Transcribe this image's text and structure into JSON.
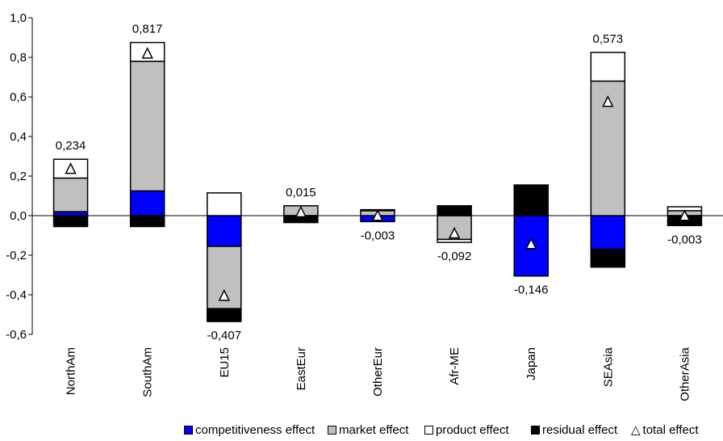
{
  "chart_data": {
    "type": "bar",
    "stacked": true,
    "categories": [
      "NorthAm",
      "SouthAm",
      "EU15",
      "EastEur",
      "OtherEur",
      "Afr-ME",
      "Japan",
      "SEAsia",
      "OtherAsia"
    ],
    "series": [
      {
        "name": "competitiveness effect",
        "color": "#0000ff",
        "values": [
          0.02,
          0.125,
          -0.155,
          0.0,
          -0.03,
          0.0,
          -0.305,
          -0.17,
          0.0
        ]
      },
      {
        "name": "market effect",
        "color": "#c0c0c0",
        "values": [
          0.17,
          0.655,
          -0.315,
          0.05,
          0.025,
          -0.12,
          0.0,
          0.68,
          0.025
        ]
      },
      {
        "name": "product effect",
        "color": "#ffffff",
        "values": [
          0.095,
          0.095,
          0.115,
          0.0,
          0.0,
          -0.015,
          0.0,
          0.145,
          0.02
        ]
      },
      {
        "name": "residual effect",
        "color": "#000000",
        "values": [
          -0.055,
          -0.055,
          -0.065,
          -0.035,
          0.005,
          0.05,
          0.155,
          -0.09,
          -0.05
        ]
      }
    ],
    "total_effect": {
      "name": "total effect",
      "values": [
        0.234,
        0.817,
        -0.407,
        0.015,
        -0.003,
        -0.092,
        -0.146,
        0.573,
        -0.003
      ],
      "labels": [
        "0,234",
        "0,817",
        "-0,407",
        "0,015",
        "-0,003",
        "-0,092",
        "-0,146",
        "0,573",
        "-0,003"
      ]
    },
    "ylim": [
      -0.6,
      1.0
    ],
    "yticks": [
      -0.6,
      -0.4,
      -0.2,
      0.0,
      0.2,
      0.4,
      0.6,
      0.8,
      1.0
    ],
    "ytick_labels": [
      "-0,6",
      "-0,4",
      "-0,2",
      "0,0",
      "0,2",
      "0,4",
      "0,6",
      "0,8",
      "1,0"
    ],
    "grid": false,
    "legend_position": "bottom"
  },
  "legend": {
    "items": [
      {
        "label": "competitiveness effect",
        "color": "#0000ff"
      },
      {
        "label": "market effect",
        "color": "#c0c0c0"
      },
      {
        "label": "product effect",
        "color": "#ffffff"
      },
      {
        "label": "residual effect",
        "color": "#000000"
      },
      {
        "label": "total effect",
        "symbol": "triangle"
      }
    ]
  }
}
